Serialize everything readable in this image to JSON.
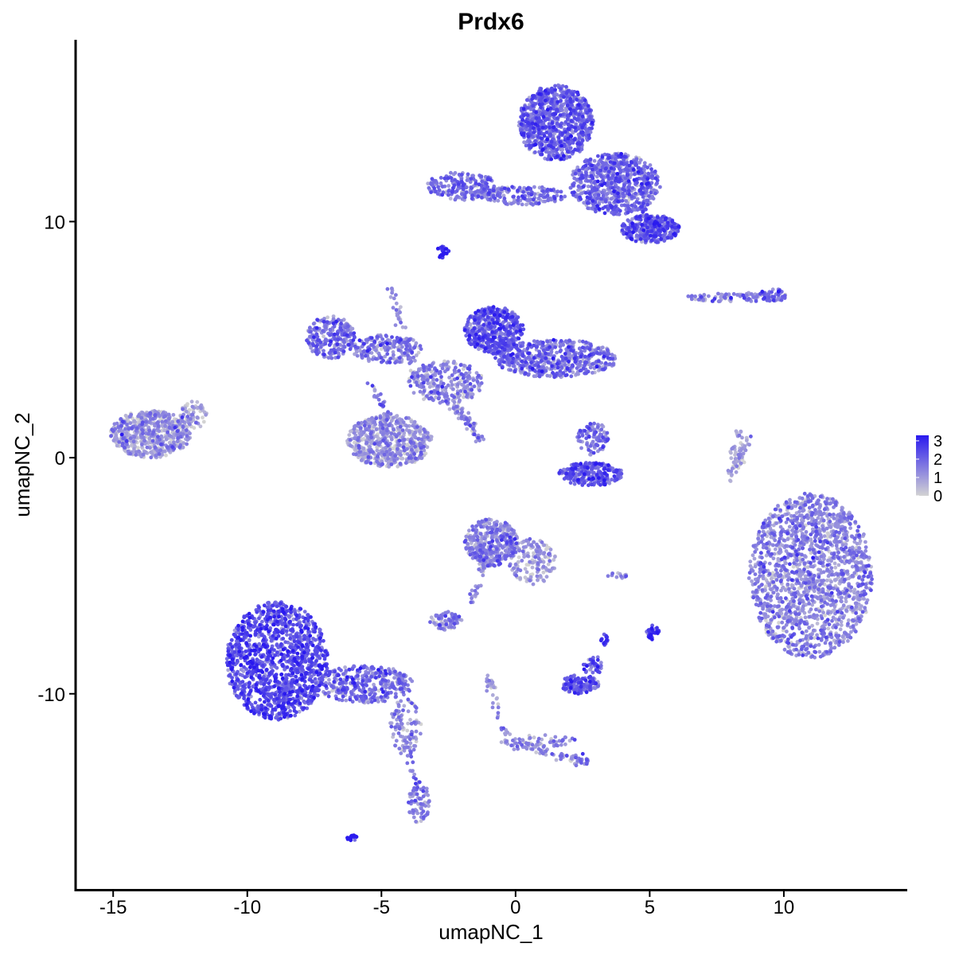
{
  "chart_data": {
    "type": "scatter",
    "title": "Prdx6",
    "xlabel": "umapNC_1",
    "ylabel": "umapNC_2",
    "xlim": [
      -16.4,
      14.6
    ],
    "ylim": [
      -18.3,
      17.7
    ],
    "x_ticks": [
      -15,
      -10,
      -5,
      0,
      5,
      10
    ],
    "x_tick_labels": [
      "-15",
      "-10",
      "-5",
      "0",
      "5",
      "10"
    ],
    "y_ticks": [
      -10,
      0,
      10
    ],
    "y_tick_labels": [
      "-10",
      "0",
      "10"
    ],
    "grid": false,
    "color_scale": {
      "low_color": "#d3d3d3",
      "high_color": "#2a1aef",
      "min": 0,
      "max": 3.3,
      "legend_ticks": [
        0,
        1,
        2,
        3
      ],
      "legend_tick_labels": [
        "0",
        "1",
        "2",
        "3"
      ],
      "legend_position": "right"
    },
    "clusters": [
      {
        "cx": 11.0,
        "cy": -5.0,
        "rx": 2.3,
        "ry": 3.5,
        "n": 1700,
        "mean_expr": 1.2
      },
      {
        "cx": -8.9,
        "cy": -8.6,
        "rx": 1.9,
        "ry": 2.5,
        "n": 1300,
        "mean_expr": 2.2
      },
      {
        "cx": -5.6,
        "cy": -9.6,
        "rx": 1.8,
        "ry": 0.8,
        "n": 350,
        "mean_expr": 1.6
      },
      {
        "cx": -4.1,
        "cy": -11.4,
        "rx": 0.6,
        "ry": 1.2,
        "n": 80,
        "mean_expr": 1.2
      },
      {
        "cx": -3.6,
        "cy": -14.6,
        "rx": 0.4,
        "ry": 0.9,
        "n": 70,
        "mean_expr": 1.5
      },
      {
        "cx": 1.5,
        "cy": 14.2,
        "rx": 1.4,
        "ry": 1.6,
        "n": 900,
        "mean_expr": 1.8
      },
      {
        "cx": 3.7,
        "cy": 11.6,
        "rx": 1.7,
        "ry": 1.3,
        "n": 700,
        "mean_expr": 1.7
      },
      {
        "cx": 5.0,
        "cy": 9.7,
        "rx": 1.1,
        "ry": 0.6,
        "n": 300,
        "mean_expr": 2.0
      },
      {
        "cx": -2.0,
        "cy": 11.5,
        "rx": 1.3,
        "ry": 0.6,
        "n": 200,
        "mean_expr": 1.6
      },
      {
        "cx": 0.3,
        "cy": 11.1,
        "rx": 1.6,
        "ry": 0.4,
        "n": 160,
        "mean_expr": 1.5
      },
      {
        "cx": -2.7,
        "cy": 8.7,
        "rx": 0.25,
        "ry": 0.25,
        "n": 25,
        "mean_expr": 3.0
      },
      {
        "cx": -0.8,
        "cy": 5.4,
        "rx": 1.1,
        "ry": 1.0,
        "n": 450,
        "mean_expr": 2.0
      },
      {
        "cx": 1.5,
        "cy": 4.2,
        "rx": 2.3,
        "ry": 0.8,
        "n": 550,
        "mean_expr": 1.6
      },
      {
        "cx": -6.9,
        "cy": 5.1,
        "rx": 0.9,
        "ry": 0.9,
        "n": 250,
        "mean_expr": 1.6
      },
      {
        "cx": -4.8,
        "cy": 4.6,
        "rx": 1.3,
        "ry": 0.6,
        "n": 200,
        "mean_expr": 1.4
      },
      {
        "cx": -2.6,
        "cy": 3.2,
        "rx": 1.4,
        "ry": 0.9,
        "n": 250,
        "mean_expr": 1.3
      },
      {
        "cx": -4.7,
        "cy": 0.7,
        "rx": 1.6,
        "ry": 1.1,
        "n": 600,
        "mean_expr": 0.9
      },
      {
        "cx": -13.6,
        "cy": 1.0,
        "rx": 1.5,
        "ry": 1.0,
        "n": 600,
        "mean_expr": 0.8
      },
      {
        "cx": -12.0,
        "cy": 1.8,
        "rx": 0.5,
        "ry": 0.6,
        "n": 70,
        "mean_expr": 0.8
      },
      {
        "cx": 2.8,
        "cy": -0.7,
        "rx": 1.2,
        "ry": 0.5,
        "n": 250,
        "mean_expr": 2.0
      },
      {
        "cx": 2.9,
        "cy": 0.8,
        "rx": 0.6,
        "ry": 0.7,
        "n": 90,
        "mean_expr": 1.5
      },
      {
        "cx": -0.9,
        "cy": -3.6,
        "rx": 1.0,
        "ry": 1.0,
        "n": 350,
        "mean_expr": 1.3
      },
      {
        "cx": 0.6,
        "cy": -4.4,
        "rx": 0.9,
        "ry": 1.0,
        "n": 160,
        "mean_expr": 0.9
      },
      {
        "cx": -2.6,
        "cy": -6.9,
        "rx": 0.6,
        "ry": 0.4,
        "n": 80,
        "mean_expr": 1.2
      },
      {
        "cx": 2.4,
        "cy": -9.6,
        "rx": 0.7,
        "ry": 0.4,
        "n": 120,
        "mean_expr": 2.1
      },
      {
        "cx": 2.9,
        "cy": -8.8,
        "rx": 0.4,
        "ry": 0.4,
        "n": 40,
        "mean_expr": 2.0
      },
      {
        "cx": 5.1,
        "cy": -7.4,
        "rx": 0.25,
        "ry": 0.3,
        "n": 30,
        "mean_expr": 2.8
      },
      {
        "cx": 3.3,
        "cy": -7.7,
        "rx": 0.15,
        "ry": 0.25,
        "n": 15,
        "mean_expr": 2.7
      },
      {
        "cx": 8.2,
        "cy": 6.8,
        "rx": 1.8,
        "ry": 0.2,
        "n": 90,
        "mean_expr": 1.3
      },
      {
        "cx": 9.6,
        "cy": 6.9,
        "rx": 0.5,
        "ry": 0.3,
        "n": 50,
        "mean_expr": 1.7
      },
      {
        "cx": 8.3,
        "cy": 0.3,
        "rx": 0.3,
        "ry": 0.9,
        "n": 40,
        "mean_expr": 0.7
      },
      {
        "cx": 2.4,
        "cy": -12.8,
        "rx": 0.35,
        "ry": 0.3,
        "n": 30,
        "mean_expr": 1.5
      },
      {
        "cx": -6.1,
        "cy": -16.1,
        "rx": 0.2,
        "ry": 0.12,
        "n": 18,
        "mean_expr": 3.2
      },
      {
        "cx": 3.8,
        "cy": -5.0,
        "rx": 0.4,
        "ry": 0.12,
        "n": 12,
        "mean_expr": 1.2
      },
      {
        "cx": 1.0,
        "cy": -12.0,
        "rx": 1.3,
        "ry": 0.25,
        "n": 50,
        "mean_expr": 1.1
      }
    ],
    "trails": [
      {
        "from": [
          -0.9,
          -3.6
        ],
        "to": [
          -1.7,
          -6.3
        ],
        "n": 40,
        "mean_expr": 1.2
      },
      {
        "from": [
          -1.0,
          -9.3
        ],
        "to": [
          -0.3,
          -12.1
        ],
        "n": 40,
        "mean_expr": 1.0
      },
      {
        "from": [
          -0.3,
          -12.1
        ],
        "to": [
          2.4,
          -12.8
        ],
        "n": 40,
        "mean_expr": 1.3
      },
      {
        "from": [
          -4.5,
          -10.5
        ],
        "to": [
          -3.7,
          -13.8
        ],
        "n": 35,
        "mean_expr": 1.0
      },
      {
        "from": [
          -2.4,
          2.2
        ],
        "to": [
          -1.3,
          0.7
        ],
        "n": 35,
        "mean_expr": 1.2
      },
      {
        "from": [
          -1.3,
          0.7
        ],
        "to": [
          -1.3,
          0.7
        ],
        "n": 1,
        "mean_expr": 1.2
      },
      {
        "from": [
          -4.7,
          7.5
        ],
        "to": [
          -3.8,
          3.5
        ],
        "n": 45,
        "mean_expr": 1.2
      },
      {
        "from": [
          -2.2,
          2.2
        ],
        "to": [
          -1.3,
          0.7
        ],
        "n": 30,
        "mean_expr": 1.3
      },
      {
        "from": [
          8.8,
          1.1
        ],
        "to": [
          7.9,
          -0.9
        ],
        "n": 30,
        "mean_expr": 0.8
      },
      {
        "from": [
          -5.5,
          3.2
        ],
        "to": [
          -4.7,
          1.6
        ],
        "n": 30,
        "mean_expr": 1.4
      },
      {
        "from": [
          4.7,
          10.6
        ],
        "to": [
          5.4,
          9.6
        ],
        "n": 25,
        "mean_expr": 2.4
      }
    ]
  }
}
